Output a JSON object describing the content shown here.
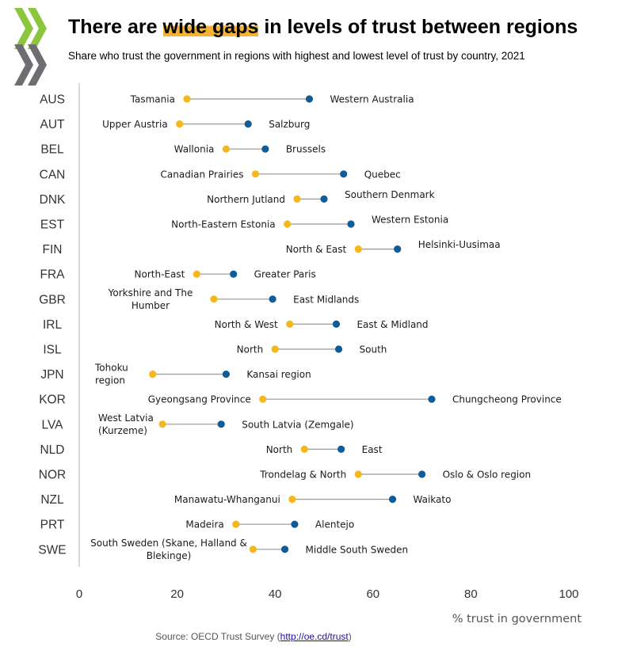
{
  "header": {
    "title_parts": [
      "There are ",
      "wide gaps",
      " in levels of trust between regions"
    ],
    "subtitle": "Share who trust the government in regions with highest and lowest level of trust by country, 2021"
  },
  "source": {
    "prefix": "Source: OECD Trust Survey (",
    "link_text": "http://oe.cd/trust",
    "suffix": ")"
  },
  "colors": {
    "low": "#f4b71c",
    "high": "#0f5c99",
    "connector": "#999999",
    "axis": "#bfbfbf",
    "logo_green": "#8cc63f",
    "logo_grey": "#6d6e71"
  },
  "chart_data": {
    "type": "dumbbell",
    "xlabel": "% trust in government",
    "xlim": [
      0,
      100
    ],
    "xticks": [
      0,
      20,
      40,
      60,
      80,
      100
    ],
    "grid": false,
    "legend": "none",
    "rows": [
      {
        "country": "AUS",
        "low": {
          "region": "Tasmania",
          "value": 22
        },
        "high": {
          "region": "Western Australia",
          "value": 47
        }
      },
      {
        "country": "AUT",
        "low": {
          "region": "Upper Austria",
          "value": 20.5
        },
        "high": {
          "region": "Salzburg",
          "value": 34.5
        }
      },
      {
        "country": "BEL",
        "low": {
          "region": "Wallonia",
          "value": 30
        },
        "high": {
          "region": "Brussels",
          "value": 38
        }
      },
      {
        "country": "CAN",
        "low": {
          "region": "Canadian Prairies",
          "value": 36
        },
        "high": {
          "region": "Quebec",
          "value": 54
        }
      },
      {
        "country": "DNK",
        "low": {
          "region": "Northern Jutland",
          "value": 44.5
        },
        "high": {
          "region": "Southern Denmark",
          "value": 50
        }
      },
      {
        "country": "EST",
        "low": {
          "region": "North-Eastern Estonia",
          "value": 42.5
        },
        "high": {
          "region": "Western Estonia",
          "value": 55.5
        }
      },
      {
        "country": "FIN",
        "low": {
          "region": "North & East",
          "value": 57
        },
        "high": {
          "region": "Helsinki-Uusimaa",
          "value": 65
        }
      },
      {
        "country": "FRA",
        "low": {
          "region": "North-East",
          "value": 24
        },
        "high": {
          "region": "Greater Paris",
          "value": 31.5
        }
      },
      {
        "country": "GBR",
        "low": {
          "region": "Yorkshire and The Humber",
          "value": 27.5
        },
        "high": {
          "region": "East Midlands",
          "value": 39.5
        }
      },
      {
        "country": "IRL",
        "low": {
          "region": "North & West",
          "value": 43
        },
        "high": {
          "region": "East & Midland",
          "value": 52.5
        }
      },
      {
        "country": "ISL",
        "low": {
          "region": "North",
          "value": 40
        },
        "high": {
          "region": "South",
          "value": 53
        }
      },
      {
        "country": "JPN",
        "low": {
          "region": "Tohoku region",
          "value": 15
        },
        "high": {
          "region": "Kansai region",
          "value": 30
        }
      },
      {
        "country": "KOR",
        "low": {
          "region": "Gyeongsang Province",
          "value": 37.5
        },
        "high": {
          "region": "Chungcheong Province",
          "value": 72
        }
      },
      {
        "country": "LVA",
        "low": {
          "region": "West Latvia (Kurzeme)",
          "value": 17
        },
        "high": {
          "region": "South Latvia (Zemgale)",
          "value": 29
        }
      },
      {
        "country": "NLD",
        "low": {
          "region": "North",
          "value": 46
        },
        "high": {
          "region": "East",
          "value": 53.5
        }
      },
      {
        "country": "NOR",
        "low": {
          "region": "Trondelag & North",
          "value": 57
        },
        "high": {
          "region": "Oslo & Oslo region",
          "value": 70
        }
      },
      {
        "country": "NZL",
        "low": {
          "region": "Manawatu-Whanganui",
          "value": 43.5
        },
        "high": {
          "region": "Waikato",
          "value": 64
        }
      },
      {
        "country": "PRT",
        "low": {
          "region": "Madeira",
          "value": 32
        },
        "high": {
          "region": "Alentejo",
          "value": 44
        }
      },
      {
        "country": "SWE",
        "low": {
          "region": "South Sweden (Skane, Halland & Blekinge)",
          "value": 35.5
        },
        "high": {
          "region": "Middle South Sweden",
          "value": 42
        }
      }
    ]
  }
}
